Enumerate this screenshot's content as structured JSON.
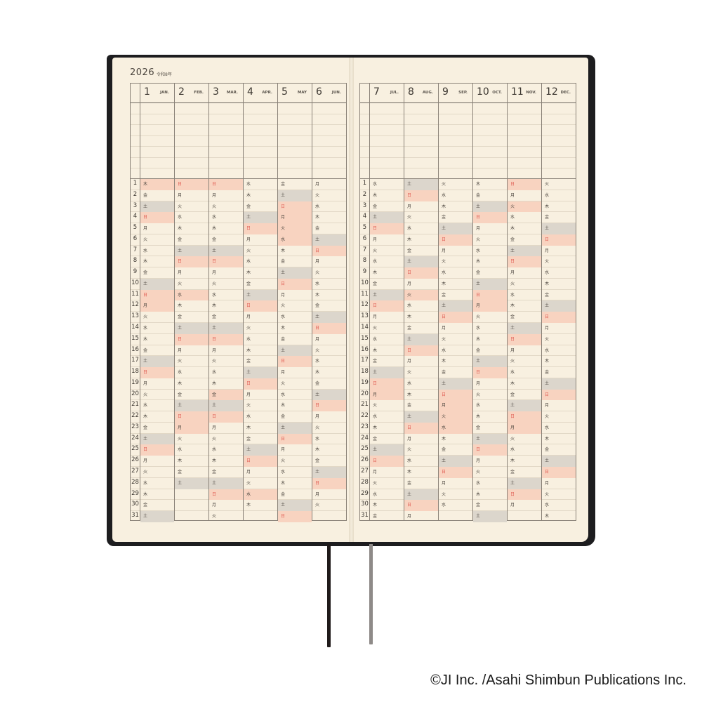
{
  "header": {
    "year": "2026",
    "era": "令和8年"
  },
  "colors": {
    "holiday": "#f8d3c0",
    "saturday": "#dcd6cc",
    "sunday_text": "#e05a50",
    "paper": "#f8f0e0",
    "cover": "#1d1d1f"
  },
  "months": [
    {
      "num": "1",
      "abbr": "JAN.",
      "weekdays": "木金土日月火水木金土日月火水木金土日月火水木金土日月火水木金土",
      "holidays": [
        1,
        12
      ]
    },
    {
      "num": "2",
      "abbr": "FEB.",
      "weekdays": "日月火水木金土日月火水木金土日月火水木金土日月火水木金土",
      "holidays": [
        11,
        23
      ]
    },
    {
      "num": "3",
      "abbr": "MAR.",
      "weekdays": "日月火水木金土日月火水木金土日月火水木金土日月火水木金土日月火",
      "holidays": [
        20
      ]
    },
    {
      "num": "4",
      "abbr": "APR.",
      "weekdays": "水木金土日月火水木金土日月火水木金土日月火水木金土日月火水木",
      "holidays": [
        29
      ]
    },
    {
      "num": "5",
      "abbr": "MAY",
      "weekdays": "金土日月火水木金土日月火水木金土日月火水木金土日月火水木金土日",
      "holidays": [
        3,
        4,
        5,
        6
      ]
    },
    {
      "num": "6",
      "abbr": "JUN.",
      "weekdays": "月火水木金土日月火水木金土日月火水木金土日月火水木金土日月火",
      "holidays": []
    },
    {
      "num": "7",
      "abbr": "JUL.",
      "weekdays": "水木金土日月火水木金土日月火水木金土日月火水木金土日月火水木金",
      "holidays": [
        20
      ]
    },
    {
      "num": "8",
      "abbr": "AUG.",
      "weekdays": "土日月火水木金土日月火水木金土日月火水木金土日月火水木金土日月",
      "holidays": [
        11
      ]
    },
    {
      "num": "9",
      "abbr": "SEP.",
      "weekdays": "火水木金土日月火水木金土日月火水木金土日月火水木金土日月火水",
      "holidays": [
        21,
        22,
        23
      ]
    },
    {
      "num": "10",
      "abbr": "OCT.",
      "weekdays": "木金土日月火水木金土日月火水木金土日月火水木金土日月火水木金土",
      "holidays": [
        12
      ]
    },
    {
      "num": "11",
      "abbr": "NOV.",
      "weekdays": "日月火水木金土日月火水木金土日月火水木金土日月火水木金土日月",
      "holidays": [
        3,
        23
      ]
    },
    {
      "num": "12",
      "abbr": "DEC.",
      "weekdays": "火水木金土日月火水木金土日月火水木金土日月火水木金土日月火水木",
      "holidays": []
    }
  ],
  "copyright": "©JI Inc. /Asahi Shimbun Publications Inc."
}
